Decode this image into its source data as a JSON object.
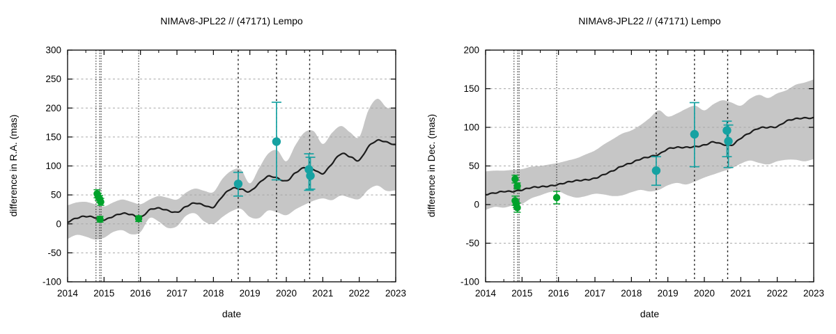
{
  "style": {
    "background": "#ffffff",
    "band_color": "#c6c6c6",
    "model_line_color": "#1c1c1c",
    "grid_color": "#a6a6a6",
    "axis_color": "#000000",
    "occultation_point_color": "#00a22b",
    "observation_point_color": "#16a2a2",
    "epoch_line_color": "#1a1a1a"
  },
  "chart_data": [
    {
      "type": "line",
      "title": "NIMAv8-JPL22 // (47171) Lempo",
      "xlabel": "date",
      "ylabel": "difference in R.A. (mas)",
      "xlim": [
        2014,
        2023
      ],
      "ylim": [
        -100,
        300
      ],
      "xticks": [
        2014,
        2015,
        2016,
        2017,
        2018,
        2019,
        2020,
        2021,
        2022,
        2023
      ],
      "yticks": [
        -100,
        -50,
        0,
        50,
        100,
        150,
        200,
        250,
        300
      ],
      "grid": true,
      "legend_position": "none",
      "x": [
        2014,
        2014.25,
        2014.5,
        2014.75,
        2015,
        2015.25,
        2015.5,
        2015.75,
        2016,
        2016.25,
        2016.5,
        2016.75,
        2017,
        2017.25,
        2017.5,
        2017.75,
        2018,
        2018.25,
        2018.5,
        2018.75,
        2019,
        2019.25,
        2019.5,
        2019.75,
        2020,
        2020.25,
        2020.5,
        2020.75,
        2021,
        2021.25,
        2021.5,
        2021.75,
        2022,
        2022.25,
        2022.5,
        2022.75,
        2023
      ],
      "model": [
        3,
        10,
        13,
        11,
        7,
        13,
        18,
        16,
        11,
        24,
        27,
        23,
        20,
        30,
        36,
        32,
        29,
        48,
        61,
        60,
        56,
        70,
        82,
        79,
        74,
        88,
        97,
        94,
        87,
        104,
        121,
        116,
        110,
        133,
        144,
        141,
        136
      ],
      "band_upper": [
        32,
        37,
        38,
        34,
        30,
        37,
        42,
        38,
        34,
        42,
        48,
        45,
        42,
        54,
        61,
        57,
        55,
        78,
        92,
        94,
        70,
        96,
        121,
        127,
        108,
        136,
        158,
        160,
        138,
        157,
        169,
        158,
        150,
        196,
        216,
        201,
        199
      ],
      "band_lower": [
        -26,
        -19,
        -22,
        -27,
        -24,
        -14,
        -11,
        -18,
        -14,
        10,
        4,
        -7,
        -4,
        14,
        18,
        4,
        0,
        12,
        22,
        26,
        12,
        10,
        23,
        20,
        15,
        25,
        33,
        40,
        44,
        41,
        49,
        45,
        43,
        59,
        66,
        57,
        58
      ],
      "occultation_epoch_lines": [
        2014.78,
        2014.88,
        2014.92,
        2015.95
      ],
      "observation_epoch_lines": [
        2018.68,
        2019.73,
        2020.64
      ],
      "occultation_points": [
        {
          "x": 2014.81,
          "y": 52,
          "err": 7
        },
        {
          "x": 2014.84,
          "y": 47,
          "err": 6
        },
        {
          "x": 2014.88,
          "y": 43,
          "err": 6
        },
        {
          "x": 2014.91,
          "y": 38,
          "err": 6
        },
        {
          "x": 2014.89,
          "y": 8,
          "err": 5
        },
        {
          "x": 2015.95,
          "y": 9,
          "err": 5
        }
      ],
      "observation_points": [
        {
          "x": 2018.68,
          "y": 69,
          "lo": 48,
          "hi": 89
        },
        {
          "x": 2019.73,
          "y": 142,
          "lo": 76,
          "hi": 210
        },
        {
          "x": 2020.62,
          "y": 94,
          "lo": 58,
          "hi": 121
        },
        {
          "x": 2020.66,
          "y": 83,
          "lo": 60,
          "hi": 115
        }
      ]
    },
    {
      "type": "line",
      "title": "NIMAv8-JPL22 // (47171) Lempo",
      "xlabel": "date",
      "ylabel": "difference in Dec. (mas)",
      "xlim": [
        2014,
        2023
      ],
      "ylim": [
        -100,
        200
      ],
      "xticks": [
        2014,
        2015,
        2016,
        2017,
        2018,
        2019,
        2020,
        2021,
        2022,
        2023
      ],
      "yticks": [
        -100,
        -50,
        0,
        50,
        100,
        150,
        200
      ],
      "grid": true,
      "legend_position": "none",
      "x": [
        2014,
        2014.25,
        2014.5,
        2014.75,
        2015,
        2015.25,
        2015.5,
        2015.75,
        2016,
        2016.25,
        2016.5,
        2016.75,
        2017,
        2017.25,
        2017.5,
        2017.75,
        2018,
        2018.25,
        2018.5,
        2018.75,
        2019,
        2019.25,
        2019.5,
        2019.75,
        2020,
        2020.25,
        2020.5,
        2020.75,
        2021,
        2021.25,
        2021.5,
        2021.75,
        2022,
        2022.25,
        2022.5,
        2022.75,
        2023
      ],
      "model": [
        13,
        15,
        17,
        17,
        19,
        22,
        23,
        24,
        26,
        29,
        31,
        32,
        34,
        39,
        44,
        50,
        54,
        59,
        62,
        65,
        72,
        74,
        74,
        75,
        77,
        81,
        78,
        77,
        86,
        93,
        99,
        100,
        101,
        108,
        111,
        112,
        112
      ],
      "band_upper": [
        43,
        44,
        44,
        45,
        46,
        49,
        50,
        52,
        54,
        57,
        60,
        65,
        70,
        78,
        85,
        92,
        96,
        103,
        112,
        122,
        114,
        118,
        124,
        128,
        122,
        130,
        135,
        132,
        128,
        137,
        142,
        138,
        144,
        148,
        155,
        158,
        162
      ],
      "band_lower": [
        -7,
        -3,
        -4,
        -1,
        1,
        8,
        12,
        16,
        17,
        12,
        9,
        11,
        14,
        13,
        11,
        12,
        16,
        19,
        17,
        19,
        25,
        28,
        26,
        30,
        35,
        39,
        43,
        47,
        53,
        57,
        54,
        52,
        56,
        58,
        58,
        56,
        59
      ],
      "occultation_epoch_lines": [
        2014.78,
        2014.88,
        2014.92,
        2015.95
      ],
      "observation_epoch_lines": [
        2018.68,
        2019.73,
        2020.64
      ],
      "occultation_points": [
        {
          "x": 2014.81,
          "y": 33,
          "err": 5
        },
        {
          "x": 2014.87,
          "y": 24,
          "err": 4
        },
        {
          "x": 2014.81,
          "y": 5,
          "err": 6
        },
        {
          "x": 2014.84,
          "y": 1,
          "err": 5
        },
        {
          "x": 2014.87,
          "y": -4,
          "err": 6
        },
        {
          "x": 2015.95,
          "y": 9,
          "err": 8
        }
      ],
      "observation_points": [
        {
          "x": 2018.68,
          "y": 44,
          "lo": 25,
          "hi": 62
        },
        {
          "x": 2019.73,
          "y": 91,
          "lo": 49,
          "hi": 132
        },
        {
          "x": 2020.62,
          "y": 96,
          "lo": 62,
          "hi": 108
        },
        {
          "x": 2020.66,
          "y": 82,
          "lo": 48,
          "hi": 103
        }
      ]
    }
  ]
}
